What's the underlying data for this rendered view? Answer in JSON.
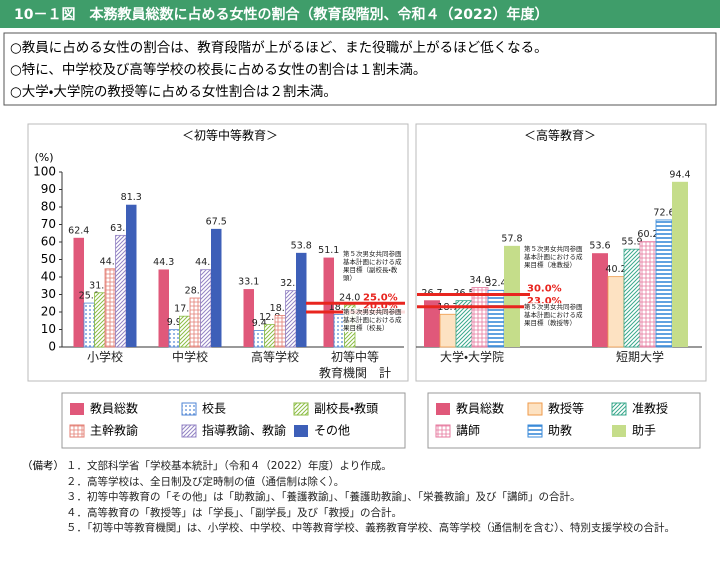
{
  "header": {
    "title": "10－１図　本務教員総数に占める女性の割合（教育段階別、令和４（2022）年度）"
  },
  "summary": [
    "○教員に占める女性の割合は、教育段階が上がるほど、また役職が上がるほど低くなる。",
    "○特に、中学校及び高等学校の校長に占める女性の割合は１割未満。",
    "○大学・大学院の教授等に占める女性割合は２割未満。"
  ],
  "chart_data": [
    {
      "type": "bar",
      "title": "＜初等中等教育＞",
      "y_label": "(%)",
      "categories": [
        "小学校",
        "中学校",
        "高等学校",
        "初等中等\n教育機関　計"
      ],
      "ylim": [
        0,
        100
      ],
      "yticks": [
        0,
        10,
        20,
        30,
        40,
        50,
        60,
        70,
        80,
        90,
        100
      ],
      "series": [
        {
          "name": "教員総数",
          "color": "#e0587a",
          "pattern": "solid",
          "values": [
            62.4,
            44.3,
            33.1,
            51.1
          ],
          "value_labels": [
            "62.4",
            "44.3",
            "33.1",
            "51.1"
          ]
        },
        {
          "name": "校長",
          "color": "#4f86d4",
          "pattern": "dots",
          "values": [
            25.1,
            9.9,
            9.4,
            18.6
          ],
          "value_labels": [
            "25.1",
            "9.9",
            "9.4",
            "18.6"
          ]
        },
        {
          "name": "副校長・教頭",
          "color": "#8dbd45",
          "pattern": "hatch",
          "values": [
            31.0,
            17.6,
            12.8,
            24.0
          ],
          "value_labels": [
            "31.0",
            "17.6",
            "12.8",
            "24.0"
          ]
        },
        {
          "name": "主幹教諭",
          "color": "#e37d72",
          "pattern": "grid",
          "values": [
            44.7,
            28.0,
            18.0,
            null
          ],
          "value_labels": [
            "44.7",
            "28.0",
            "18.0",
            null
          ]
        },
        {
          "name": "指導教諭、教諭",
          "color": "#9383c4",
          "pattern": "hatch",
          "values": [
            63.8,
            44.2,
            32.2,
            null
          ],
          "value_labels": [
            "63.8",
            "44.2",
            "32.2",
            null
          ]
        },
        {
          "name": "その他",
          "color": "#3d5fb8",
          "pattern": "solid",
          "values": [
            81.3,
            67.5,
            53.8,
            null
          ],
          "value_labels": [
            "81.3",
            "67.5",
            "53.8",
            null
          ]
        }
      ],
      "reference_lines": [
        {
          "value": 25.0,
          "label": "25.0%",
          "note": "第５次男女共同参画基本計画における成果目標（副校長・教頭）",
          "color": "#e8251f"
        },
        {
          "value": 20.0,
          "label": "20.0%",
          "note": "第５次男女共同参画基本計画における成果目標（校長）",
          "color": "#e8251f"
        }
      ]
    },
    {
      "type": "bar",
      "title": "＜高等教育＞",
      "categories": [
        "大学・大学院",
        "短期大学"
      ],
      "ylim": [
        0,
        100
      ],
      "series": [
        {
          "name": "教員総数",
          "color": "#e0587a",
          "pattern": "solid",
          "values": [
            26.7,
            53.6
          ],
          "value_labels": [
            "26.7",
            "53.6"
          ]
        },
        {
          "name": "教授等",
          "color": "#ef9a4a",
          "pattern": "light",
          "values": [
            18.7,
            40.2
          ],
          "value_labels": [
            "18.7",
            "40.2"
          ]
        },
        {
          "name": "准教授",
          "color": "#3aa88c",
          "pattern": "hatch",
          "values": [
            26.5,
            55.9
          ],
          "value_labels": [
            "26.5",
            "55.9"
          ]
        },
        {
          "name": "講師",
          "color": "#e6789e",
          "pattern": "grid",
          "values": [
            34.0,
            60.2
          ],
          "value_labels": [
            "34.0",
            "60.2"
          ]
        },
        {
          "name": "助教",
          "color": "#3a8ad8",
          "pattern": "hstripe",
          "values": [
            32.4,
            72.6
          ],
          "value_labels": [
            "32.4",
            "72.6"
          ]
        },
        {
          "name": "助手",
          "color": "#c5dd8a",
          "pattern": "solid",
          "values": [
            57.8,
            94.4
          ],
          "value_labels": [
            "57.8",
            "94.4"
          ]
        }
      ],
      "reference_lines": [
        {
          "value": 30.0,
          "label": "30.0%",
          "note": "第５次男女共同参画基本計画における成果目標（准教授）",
          "color": "#e8251f"
        },
        {
          "value": 23.0,
          "label": "23.0%",
          "note": "第５次男女共同参画基本計画における成果目標（教授等）",
          "color": "#e8251f"
        }
      ]
    }
  ],
  "notes": {
    "label": "（備考）",
    "items": [
      "１．文部科学省「学校基本統計」（令和４（2022）年度）より作成。",
      "２．高等学校は、全日制及び定時制の値（通信制は除く）。",
      "３．初等中等教育の「その他」は「助教諭」、「養護教諭」、「養護助教諭」、「栄養教諭」及び「講師」の合計。",
      "４．高等教育の「教授等」は「学長」、「副学長」及び「教授」の合計。",
      "５．「初等中等教育機関」は、小学校、中学校、中等教育学校、義務教育学校、高等学校（通信制を含む）、特別支援学校の合計。"
    ]
  }
}
